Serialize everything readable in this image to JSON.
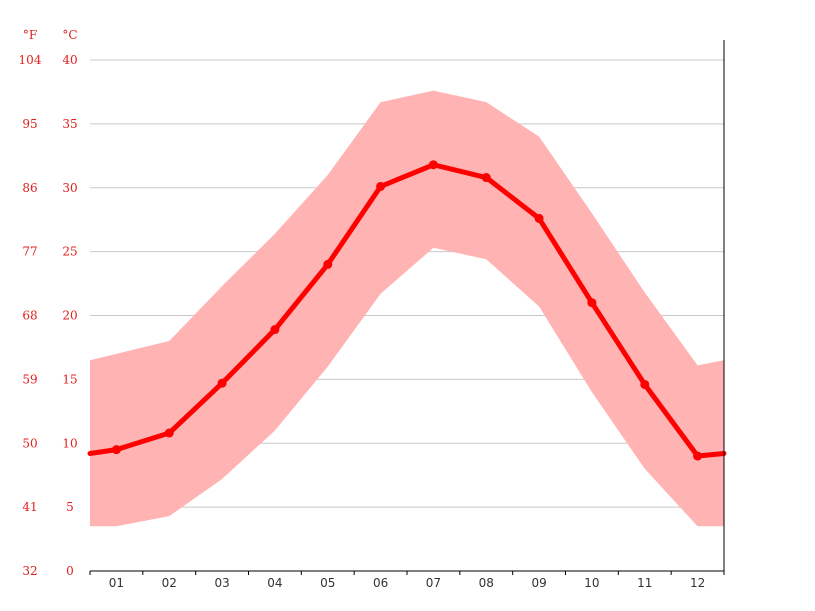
{
  "colors": {
    "axis_labels": "#e0201e",
    "line": "#ff0000",
    "band": "#ffb3b3",
    "grid": "#c8c8c8",
    "axis": "#000000",
    "x_labels": "#333333"
  },
  "chart_data": {
    "type": "line",
    "units": {
      "fahrenheit": "°F",
      "celsius": "°C"
    },
    "categories": [
      "01",
      "02",
      "03",
      "04",
      "05",
      "06",
      "07",
      "08",
      "09",
      "10",
      "11",
      "12"
    ],
    "y_ticks_c": [
      "0",
      "5",
      "10",
      "15",
      "20",
      "25",
      "30",
      "35",
      "40"
    ],
    "y_ticks_f": [
      "32",
      "41",
      "50",
      "59",
      "68",
      "77",
      "86",
      "95",
      "104"
    ],
    "ylim": [
      0,
      40
    ],
    "grid": true,
    "series": [
      {
        "values": [
          9.5,
          10.8,
          14.7,
          18.9,
          24.0,
          30.1,
          31.8,
          30.8,
          27.6,
          21.0,
          14.6,
          9.0
        ],
        "edge_values": [
          9.2,
          9.2
        ]
      }
    ],
    "range": {
      "max": [
        17.0,
        18.0,
        22.3,
        26.4,
        31.0,
        36.7,
        37.6,
        36.7,
        34.0,
        28.0,
        21.8,
        16.1
      ],
      "min": [
        3.5,
        4.3,
        7.2,
        11.0,
        16.0,
        21.7,
        25.3,
        24.4,
        20.7,
        14.0,
        8.0,
        3.5
      ],
      "edge_max": [
        16.5,
        16.5
      ],
      "edge_min": [
        3.5,
        3.5
      ]
    }
  }
}
